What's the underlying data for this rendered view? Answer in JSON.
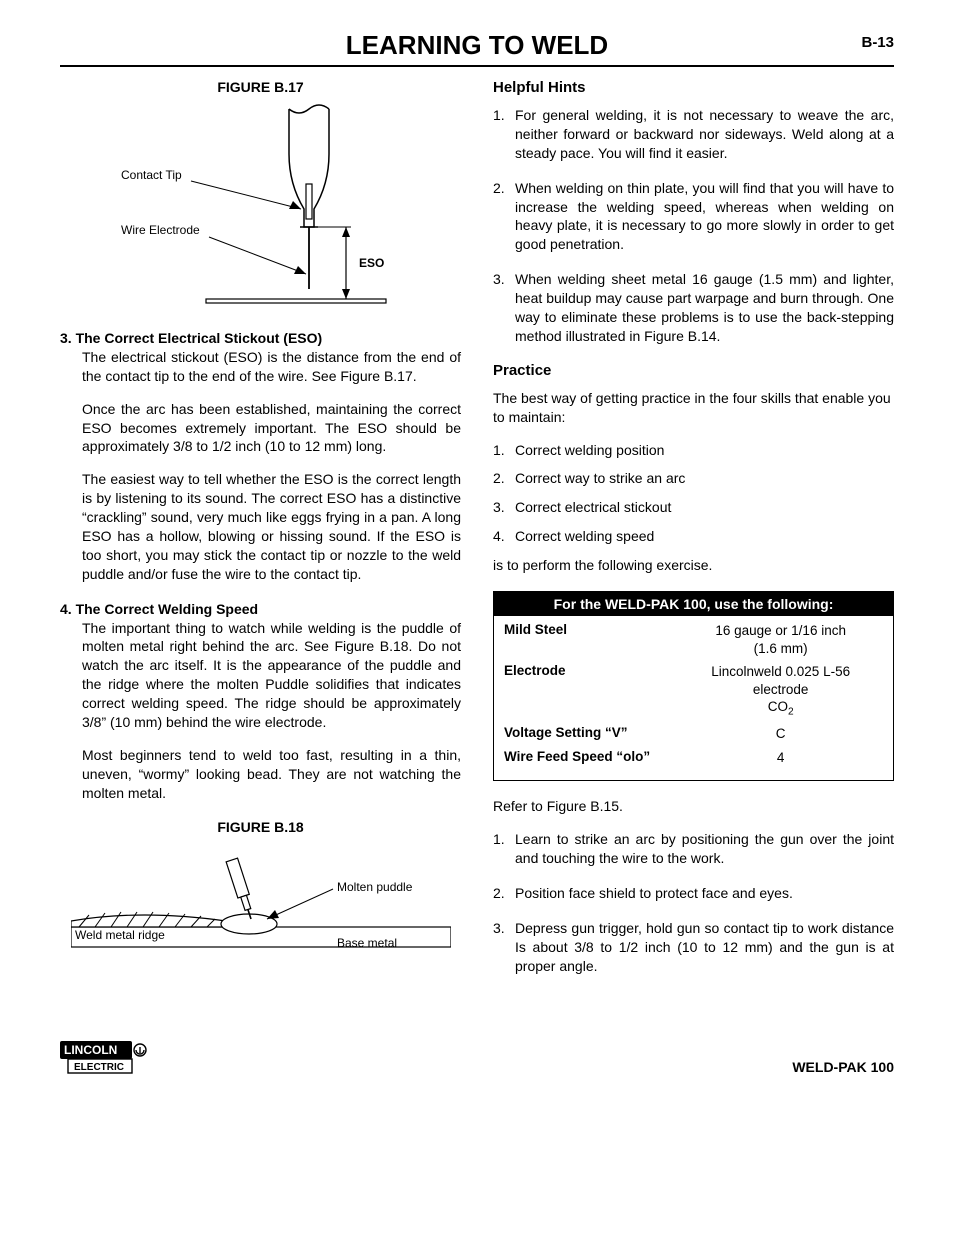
{
  "header": {
    "title": "LEARNING TO WELD",
    "page": "B-13"
  },
  "figureB17": {
    "title": "FIGURE B.17",
    "labels": {
      "contactTip": "Contact Tip",
      "wireElectrode": "Wire Electrode",
      "eso": "ESO"
    }
  },
  "left": {
    "item3": {
      "head": "3.  The Correct Electrical Stickout (ESO)",
      "p1": "The electrical stickout (ESO) is the distance from the end of the contact tip to the end of the wire. See Figure B.17.",
      "p2": "Once the arc has been established, maintaining the correct ESO becomes extremely important. The ESO should be approximately 3/8 to 1/2 inch (10 to 12 mm) long.",
      "p3": "The easiest way to tell whether the ESO is the correct length is by listening to its sound. The correct ESO has a distinctive “crackling” sound, very much like eggs frying in a pan. A long ESO has a hollow, blowing or hissing sound. If the ESO is too short, you may stick the contact tip or nozzle to the weld puddle and/or fuse the wire to the contact tip."
    },
    "item4": {
      "head": "4.  The Correct Welding Speed",
      "p1": "The important thing to watch while welding is the puddle of molten metal right behind the arc. See Figure B.18. Do not watch the arc itself. It is the appearance of the puddle and the ridge where the molten Puddle solidifies that indicates correct welding speed. The ridge should be approximately 3/8” (10 mm) behind the wire electrode.",
      "p2": "Most beginners tend to weld too fast, resulting in a thin, uneven, “wormy” looking bead. They are not watching the molten metal."
    }
  },
  "figureB18": {
    "title": "FIGURE B.18",
    "labels": {
      "weldMetalRidge": "Weld metal ridge",
      "moltenPuddle": "Molten puddle",
      "baseMetal": "Base metal"
    }
  },
  "right": {
    "hintsHead": "Helpful Hints",
    "hints": [
      "For general welding, it is not necessary to weave the arc, neither forward or backward nor sideways. Weld along at a steady pace. You will find it easier.",
      "When welding on thin plate, you will find that you will have to increase the welding speed, whereas when welding on heavy plate, it is necessary to go more slowly in order to get good penetration.",
      "When welding sheet metal 16 gauge (1.5 mm) and lighter, heat buildup may cause part warpage and burn through. One way to eliminate these problems is to use the back-stepping method illustrated in Figure B.14."
    ],
    "practiceHead": "Practice",
    "practiceIntro": "The best way of getting practice in the four skills that enable you to maintain:",
    "practiceList": [
      "Correct welding position",
      "Correct way to strike an arc",
      "Correct electrical stickout",
      "Correct welding speed"
    ],
    "practiceOutro": "is to perform the following exercise.",
    "table": {
      "title": "For the WELD-PAK 100, use the following:",
      "rows": [
        {
          "l": "Mild Steel",
          "r": "16 gauge or 1/16 inch<br>(1.6 mm)"
        },
        {
          "l": "Electrode",
          "r": "Lincolnweld 0.025 L-56<br>electrode<br>CO<sub>2</sub>"
        },
        {
          "l": "Voltage Setting “V”",
          "r": "C"
        },
        {
          "l": "Wire Feed Speed “olo”",
          "r": "4"
        }
      ]
    },
    "refer": "Refer to Figure B.15.",
    "steps": [
      "Learn to strike an arc by positioning the gun over the joint and touching the wire to the work.",
      "Position face shield to protect face and eyes.",
      "Depress gun trigger, hold gun so contact tip to work distance Is about 3/8 to 1/2 inch (10 to 12 mm) and the gun is at proper angle."
    ]
  },
  "footer": {
    "product": "WELD-PAK 100",
    "brandTop": "LINCOLN",
    "brandBottom": "ELECTRIC"
  }
}
